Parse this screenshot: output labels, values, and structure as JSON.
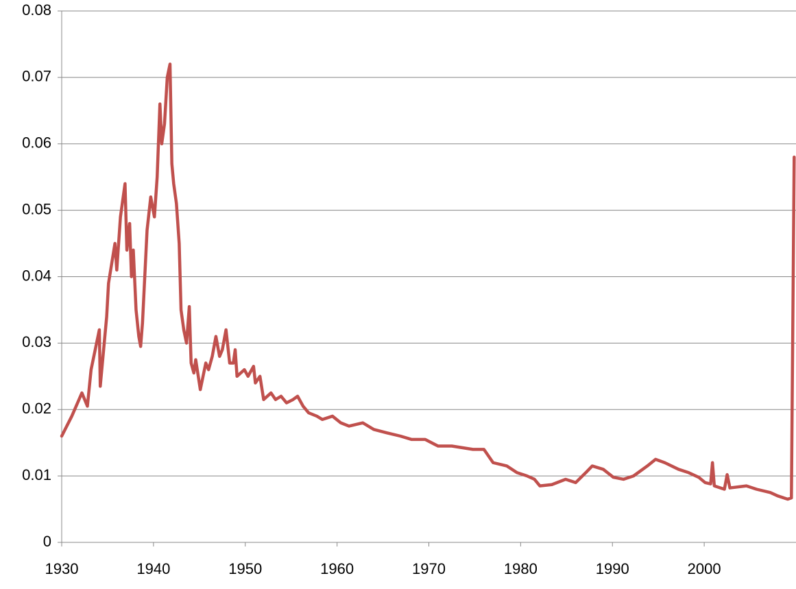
{
  "chart_data": {
    "type": "line",
    "x": [
      1930,
      1931.1,
      1932.2,
      1932.8,
      1933.2,
      1934.1,
      1934.2,
      1934.9,
      1935.1,
      1935.8,
      1936.0,
      1936.4,
      1936.9,
      1937.1,
      1937.4,
      1937.6,
      1937.8,
      1938.1,
      1938.4,
      1938.6,
      1938.8,
      1939.3,
      1939.7,
      1940.1,
      1940.4,
      1940.7,
      1940.9,
      1941.2,
      1941.5,
      1941.8,
      1942.0,
      1942.2,
      1942.5,
      1942.8,
      1943.0,
      1943.3,
      1943.6,
      1943.9,
      1944.1,
      1944.4,
      1944.6,
      1945.1,
      1945.4,
      1945.7,
      1946.0,
      1946.4,
      1946.8,
      1947.2,
      1947.5,
      1947.9,
      1948.3,
      1948.7,
      1948.9,
      1949.1,
      1949.9,
      1950.3,
      1950.9,
      1951.1,
      1951.6,
      1952.0,
      1952.8,
      1953.3,
      1953.9,
      1954.5,
      1955.2,
      1955.7,
      1956.3,
      1956.9,
      1957.8,
      1958.4,
      1959.5,
      1960.4,
      1961.3,
      1962.8,
      1964.0,
      1965.4,
      1966.9,
      1968.1,
      1969.6,
      1971.0,
      1972.5,
      1974.8,
      1976.0,
      1977.0,
      1978.5,
      1979.6,
      1980.7,
      1981.5,
      1982.1,
      1983.4,
      1984.9,
      1986.0,
      1987.1,
      1987.8,
      1989.0,
      1990.1,
      1991.2,
      1992.3,
      1993.8,
      1994.7,
      1995.7,
      1997.2,
      1998.3,
      1999.4,
      2000.1,
      2000.7,
      2000.9,
      2001.1,
      2002.2,
      2002.5,
      2002.8,
      2004.6,
      2005.7,
      2007.2,
      2008.0,
      2009.1,
      2009.5,
      2009.8
    ],
    "series": [
      {
        "color": "#c0504d",
        "values": [
          0.016,
          0.019,
          0.0225,
          0.0205,
          0.026,
          0.032,
          0.0235,
          0.034,
          0.039,
          0.045,
          0.041,
          0.049,
          0.054,
          0.044,
          0.048,
          0.04,
          0.044,
          0.035,
          0.031,
          0.0295,
          0.033,
          0.047,
          0.052,
          0.049,
          0.055,
          0.066,
          0.06,
          0.063,
          0.07,
          0.072,
          0.057,
          0.054,
          0.051,
          0.045,
          0.035,
          0.032,
          0.03,
          0.0355,
          0.027,
          0.0255,
          0.0275,
          0.023,
          0.025,
          0.027,
          0.026,
          0.028,
          0.031,
          0.028,
          0.029,
          0.032,
          0.027,
          0.027,
          0.029,
          0.025,
          0.026,
          0.025,
          0.0265,
          0.024,
          0.025,
          0.0215,
          0.0225,
          0.0215,
          0.022,
          0.021,
          0.0215,
          0.022,
          0.0205,
          0.0195,
          0.019,
          0.0185,
          0.019,
          0.018,
          0.0175,
          0.018,
          0.017,
          0.0165,
          0.016,
          0.0155,
          0.0155,
          0.0145,
          0.0145,
          0.014,
          0.014,
          0.012,
          0.0115,
          0.0105,
          0.01,
          0.0095,
          0.0085,
          0.0087,
          0.0095,
          0.009,
          0.0105,
          0.0115,
          0.011,
          0.0098,
          0.0095,
          0.01,
          0.0115,
          0.0125,
          0.012,
          0.011,
          0.0105,
          0.0098,
          0.009,
          0.0088,
          0.012,
          0.0085,
          0.008,
          0.0102,
          0.0082,
          0.0085,
          0.008,
          0.0075,
          0.007,
          0.0065,
          0.0067,
          0.058
        ]
      }
    ],
    "xlim": [
      1930,
      2010
    ],
    "xticks": [
      1930,
      1940,
      1950,
      1960,
      1970,
      1980,
      1990,
      2000
    ],
    "ylim": [
      0,
      0.08
    ],
    "yticks": [
      0,
      0.01,
      0.02,
      0.03,
      0.04,
      0.05,
      0.06,
      0.07,
      0.08
    ],
    "grid": true
  }
}
